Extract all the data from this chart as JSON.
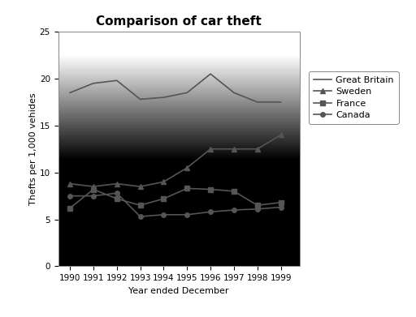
{
  "title": "Comparison of car theft",
  "xlabel": "Year ended December",
  "ylabel": "Thefts per 1,000 vehides",
  "years": [
    1990,
    1991,
    1992,
    1993,
    1994,
    1995,
    1996,
    1997,
    1998,
    1999
  ],
  "great_britain": [
    18.5,
    19.5,
    19.8,
    17.8,
    18.0,
    18.5,
    20.5,
    18.5,
    17.5,
    17.5
  ],
  "sweden": [
    8.8,
    8.5,
    8.8,
    8.5,
    9.0,
    10.5,
    12.5,
    12.5,
    12.5,
    14.0
  ],
  "france": [
    6.2,
    8.2,
    7.2,
    6.5,
    7.2,
    8.3,
    8.2,
    8.0,
    6.5,
    6.8
  ],
  "canada": [
    7.5,
    7.5,
    7.8,
    5.3,
    5.5,
    5.5,
    5.8,
    6.0,
    6.1,
    6.3
  ],
  "ylim": [
    0,
    25
  ],
  "yticks": [
    0,
    5,
    10,
    15,
    20,
    25
  ],
  "legend_labels": [
    "Great Britain",
    "Sweden",
    "France",
    "Canada"
  ],
  "line_color": "#555555",
  "title_fontsize": 11,
  "label_fontsize": 8,
  "tick_fontsize": 7.5,
  "fig_bg": "#ffffff",
  "plot_bg_top": "#c8c8c8",
  "plot_bg_bottom": "#f8f8f8"
}
